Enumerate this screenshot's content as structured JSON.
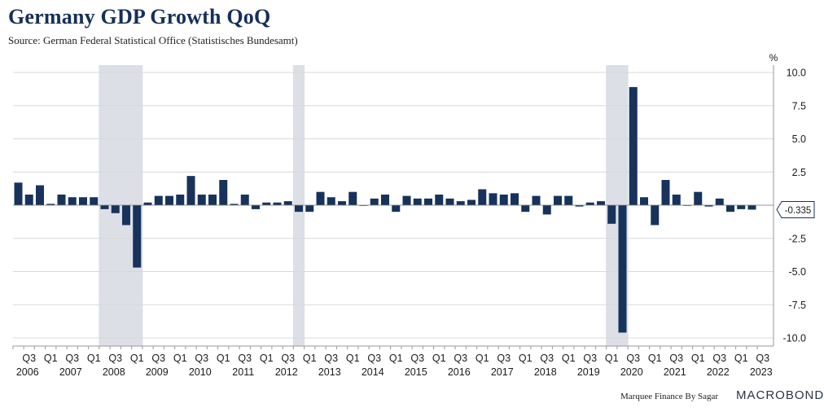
{
  "header": {
    "title": "Germany GDP Growth QoQ",
    "subtitle": "Source: German Federal Statistical Office (Statistisches Bundesamt)"
  },
  "footer": {
    "credit": "Marquee Finance By Sagar",
    "brand": "MACROBOND"
  },
  "colors": {
    "bar": "#17335c",
    "recession": "#dcdfe6",
    "grid": "#d9d9d9",
    "axis_text": "#1a1a1a"
  },
  "chart_data": {
    "type": "bar",
    "title": "Germany GDP Growth QoQ",
    "ylabel": "%",
    "ylim": [
      -10.5,
      10.5
    ],
    "yticks": [
      10.0,
      7.5,
      5.0,
      2.5,
      0.0,
      -2.5,
      -5.0,
      -7.5,
      -10.0
    ],
    "ytick_labels": [
      "10.0",
      "7.5",
      "5.0",
      "2.5",
      "",
      "-2.5",
      "-5.0",
      "-7.5",
      "-10.0"
    ],
    "categories": [
      "2006Q2",
      "2006Q3",
      "2006Q4",
      "2007Q1",
      "2007Q2",
      "2007Q3",
      "2007Q4",
      "2008Q1",
      "2008Q2",
      "2008Q3",
      "2008Q4",
      "2009Q1",
      "2009Q2",
      "2009Q3",
      "2009Q4",
      "2010Q1",
      "2010Q2",
      "2010Q3",
      "2010Q4",
      "2011Q1",
      "2011Q2",
      "2011Q3",
      "2011Q4",
      "2012Q1",
      "2012Q2",
      "2012Q3",
      "2012Q4",
      "2013Q1",
      "2013Q2",
      "2013Q3",
      "2013Q4",
      "2014Q1",
      "2014Q2",
      "2014Q3",
      "2014Q4",
      "2015Q1",
      "2015Q2",
      "2015Q3",
      "2015Q4",
      "2016Q1",
      "2016Q2",
      "2016Q3",
      "2016Q4",
      "2017Q1",
      "2017Q2",
      "2017Q3",
      "2017Q4",
      "2018Q1",
      "2018Q2",
      "2018Q3",
      "2018Q4",
      "2019Q1",
      "2019Q2",
      "2019Q3",
      "2019Q4",
      "2020Q1",
      "2020Q2",
      "2020Q3",
      "2020Q4",
      "2021Q1",
      "2021Q2",
      "2021Q3",
      "2021Q4",
      "2022Q1",
      "2022Q2",
      "2022Q3",
      "2022Q4",
      "2023Q1",
      "2023Q2"
    ],
    "values": [
      1.7,
      0.8,
      1.5,
      0.1,
      0.8,
      0.6,
      0.6,
      0.6,
      -0.3,
      -0.6,
      -1.5,
      -4.7,
      0.2,
      0.7,
      0.7,
      0.8,
      2.2,
      0.8,
      0.8,
      1.9,
      0.1,
      0.8,
      -0.3,
      0.2,
      0.2,
      0.3,
      -0.5,
      -0.5,
      1.0,
      0.6,
      0.3,
      1.0,
      0.0,
      0.5,
      0.8,
      -0.5,
      0.7,
      0.5,
      0.5,
      0.8,
      0.5,
      0.3,
      0.4,
      1.2,
      0.9,
      0.8,
      0.9,
      -0.5,
      0.7,
      -0.7,
      0.7,
      0.7,
      -0.1,
      0.2,
      0.3,
      -1.4,
      -9.6,
      8.9,
      0.6,
      -1.5,
      1.9,
      0.8,
      0.0,
      1.0,
      -0.1,
      0.5,
      -0.5,
      -0.3,
      -0.335
    ],
    "recessions": [
      {
        "start": "2008Q2",
        "end": "2009Q1"
      },
      {
        "start": "2012Q4",
        "end": "2012Q4"
      },
      {
        "start": "2020Q1",
        "end": "2020Q2"
      }
    ],
    "x_tick_labels": [
      {
        "q": "2006Q3",
        "label": "Q3"
      },
      {
        "q": "2007Q1",
        "label": "Q1"
      },
      {
        "q": "2007Q3",
        "label": "Q3"
      },
      {
        "q": "2008Q1",
        "label": "Q1"
      },
      {
        "q": "2008Q3",
        "label": "Q3"
      },
      {
        "q": "2009Q1",
        "label": "Q1"
      },
      {
        "q": "2009Q3",
        "label": "Q3"
      },
      {
        "q": "2010Q1",
        "label": "Q1"
      },
      {
        "q": "2010Q3",
        "label": "Q3"
      },
      {
        "q": "2011Q1",
        "label": "Q1"
      },
      {
        "q": "2011Q3",
        "label": "Q3"
      },
      {
        "q": "2012Q1",
        "label": "Q1"
      },
      {
        "q": "2012Q3",
        "label": "Q3"
      },
      {
        "q": "2013Q1",
        "label": "Q1"
      },
      {
        "q": "2013Q3",
        "label": "Q3"
      },
      {
        "q": "2014Q1",
        "label": "Q1"
      },
      {
        "q": "2014Q3",
        "label": "Q3"
      },
      {
        "q": "2015Q1",
        "label": "Q1"
      },
      {
        "q": "2015Q3",
        "label": "Q3"
      },
      {
        "q": "2016Q1",
        "label": "Q1"
      },
      {
        "q": "2016Q3",
        "label": "Q3"
      },
      {
        "q": "2017Q1",
        "label": "Q1"
      },
      {
        "q": "2017Q3",
        "label": "Q3"
      },
      {
        "q": "2018Q1",
        "label": "Q1"
      },
      {
        "q": "2018Q3",
        "label": "Q3"
      },
      {
        "q": "2019Q1",
        "label": "Q1"
      },
      {
        "q": "2019Q3",
        "label": "Q3"
      },
      {
        "q": "2020Q1",
        "label": "Q1"
      },
      {
        "q": "2020Q3",
        "label": "Q3"
      },
      {
        "q": "2021Q1",
        "label": "Q1"
      },
      {
        "q": "2021Q3",
        "label": "Q3"
      },
      {
        "q": "2022Q1",
        "label": "Q1"
      },
      {
        "q": "2022Q3",
        "label": "Q3"
      },
      {
        "q": "2023Q1",
        "label": "Q1"
      },
      {
        "q": "2023Q3",
        "label": "Q3"
      }
    ],
    "year_labels": [
      "2006",
      "2007",
      "2008",
      "2009",
      "2010",
      "2011",
      "2012",
      "2013",
      "2014",
      "2015",
      "2016",
      "2017",
      "2018",
      "2019",
      "2020",
      "2021",
      "2022",
      "2023"
    ],
    "last_value_label": "-0.335"
  }
}
